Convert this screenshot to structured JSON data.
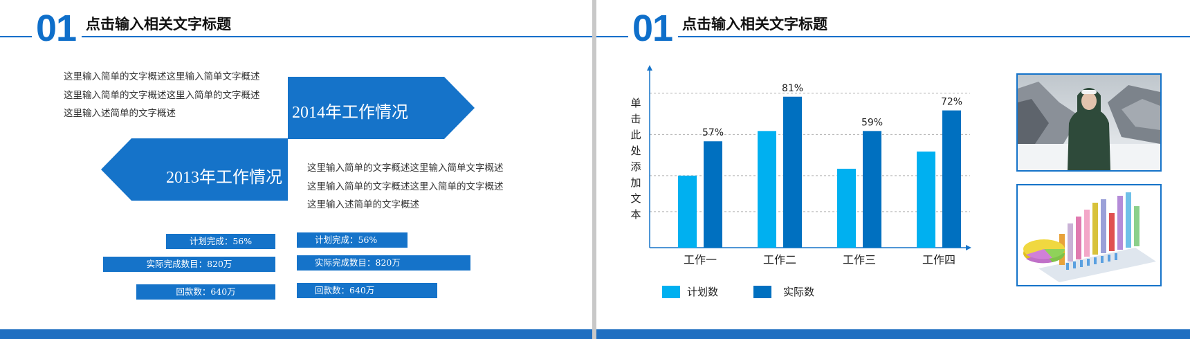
{
  "left_slide": {
    "header": {
      "number": "01",
      "title": "点击输入相关文字标题"
    },
    "para_top": "这里输入简单的文字概述这里输入简单文字概述这里输入简单的文字概述这里入简单的文字概述这里输入述简单的文字概述",
    "para_bottom": "这里输入简单的文字概述这里输入简单文字概述这里输入简单的文字概述这里入简单的文字概述这里输入述简单的文字概述",
    "arrow_2014": "2014年工作情况",
    "arrow_2013": "2013年工作情况",
    "stats_left": [
      "计划完成：56%",
      "实际完成数目：820万",
      "回款数：640万"
    ],
    "stats_right": [
      "计划完成：56%",
      "实际完成数目：820万",
      "回款数：640万"
    ]
  },
  "right_slide": {
    "header": {
      "number": "01",
      "title": "点击输入相关文字标题"
    },
    "photo_top_icon": "person-in-snow-photo",
    "photo_bottom_icon": "3d-bar-chart-photo"
  },
  "colors": {
    "primary": "#0f6fca",
    "plan": "#00b0f0",
    "actual": "#0070c0",
    "bottom_bar": "#1f6fc1"
  },
  "chart_data": {
    "type": "bar",
    "ylabel": "单击此处添加文本",
    "categories": [
      "工作一",
      "工作二",
      "工作三",
      "工作四"
    ],
    "series": [
      {
        "name": "计划数",
        "values": [
          2.1,
          3.4,
          2.3,
          2.8
        ]
      },
      {
        "name": "实际数",
        "values": [
          3.1,
          4.4,
          3.4,
          4.0
        ]
      }
    ],
    "data_labels": [
      "57%",
      "81%",
      "59%",
      "72%"
    ],
    "ylim": [
      0,
      5
    ],
    "grid": true,
    "legend": "bottom-left"
  }
}
